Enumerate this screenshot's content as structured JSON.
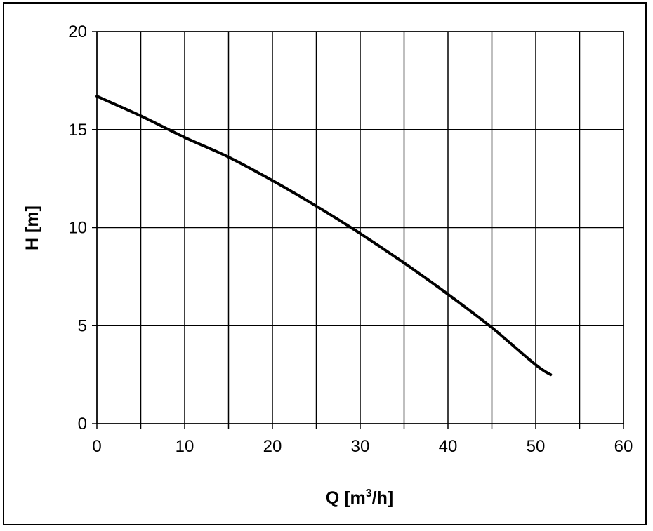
{
  "colors": {
    "background": "#ffffff",
    "grid": "#000000",
    "curve": "#000000",
    "text": "#000000"
  },
  "chart_data": {
    "type": "line",
    "title": "",
    "xlabel_main": "Q [m",
    "xlabel_sup": "3",
    "xlabel_tail": "/h]",
    "ylabel": "H [m]",
    "xlim": [
      0,
      60
    ],
    "ylim": [
      0,
      20
    ],
    "xticks": [
      "0",
      "10",
      "20",
      "30",
      "40",
      "50",
      "60"
    ],
    "yticks": [
      "0",
      "5",
      "10",
      "15",
      "20"
    ],
    "x_grid_step": 5,
    "y_grid_step": 5,
    "grid": true,
    "legend": "none",
    "series": [
      {
        "x": [
          0,
          5,
          10,
          15,
          20,
          25,
          30,
          35,
          40,
          45,
          50,
          51.7
        ],
        "y": [
          16.7,
          15.7,
          14.6,
          13.6,
          12.4,
          11.1,
          9.7,
          8.2,
          6.6,
          4.9,
          3.0,
          2.5
        ]
      }
    ]
  }
}
